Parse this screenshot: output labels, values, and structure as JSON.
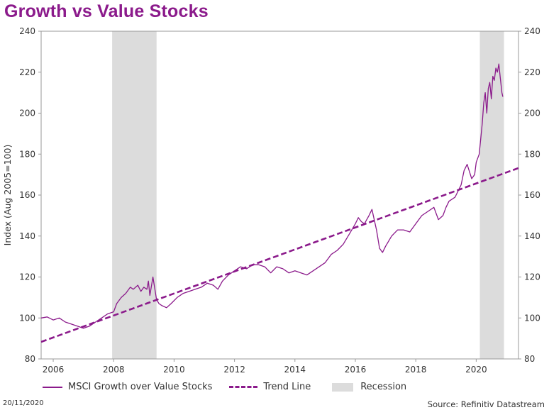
{
  "chart_data": {
    "type": "line",
    "title": "Growth vs Value Stocks",
    "ylabel": "Index (Aug 2005=100)",
    "xlim": [
      2005.6,
      2021.4
    ],
    "ylim": [
      80,
      240
    ],
    "x_ticks": [
      "2006",
      "2008",
      "2010",
      "2012",
      "2014",
      "2016",
      "2018",
      "2020"
    ],
    "y_ticks": [
      "80",
      "100",
      "120",
      "140",
      "160",
      "180",
      "200",
      "220",
      "240"
    ],
    "grid": false,
    "legend_position": "bottom",
    "colors": {
      "series": "#8B1A8B",
      "recession": "#dcdcdc"
    },
    "recessions": [
      {
        "start": 2007.95,
        "end": 2009.42
      },
      {
        "start": 2020.12,
        "end": 2020.92
      }
    ],
    "series": [
      {
        "name": "MSCI Growth over Value Stocks",
        "style": "solid",
        "x": [
          2005.6,
          2005.8,
          2006.0,
          2006.2,
          2006.4,
          2006.6,
          2006.8,
          2007.0,
          2007.2,
          2007.4,
          2007.6,
          2007.8,
          2008.0,
          2008.1,
          2008.25,
          2008.4,
          2008.55,
          2008.65,
          2008.8,
          2008.9,
          2009.0,
          2009.1,
          2009.15,
          2009.2,
          2009.3,
          2009.42,
          2009.5,
          2009.6,
          2009.75,
          2009.9,
          2010.1,
          2010.3,
          2010.5,
          2010.7,
          2010.9,
          2011.1,
          2011.3,
          2011.45,
          2011.6,
          2011.8,
          2012.0,
          2012.2,
          2012.4,
          2012.6,
          2012.8,
          2013.0,
          2013.2,
          2013.4,
          2013.6,
          2013.8,
          2014.0,
          2014.2,
          2014.4,
          2014.6,
          2014.8,
          2015.0,
          2015.2,
          2015.4,
          2015.6,
          2015.8,
          2016.0,
          2016.1,
          2016.2,
          2016.3,
          2016.45,
          2016.55,
          2016.7,
          2016.8,
          2016.9,
          2017.0,
          2017.2,
          2017.4,
          2017.6,
          2017.8,
          2018.0,
          2018.2,
          2018.4,
          2018.6,
          2018.75,
          2018.9,
          2019.0,
          2019.1,
          2019.3,
          2019.5,
          2019.6,
          2019.7,
          2019.85,
          2019.95,
          2020.0,
          2020.1,
          2020.2,
          2020.25,
          2020.3,
          2020.35,
          2020.4,
          2020.45,
          2020.5,
          2020.55,
          2020.6,
          2020.65,
          2020.7,
          2020.75,
          2020.8,
          2020.85,
          2020.88
        ],
        "values": [
          100,
          100.5,
          99,
          100,
          98,
          97,
          96,
          95,
          96,
          98,
          100,
          102,
          103,
          107,
          110,
          112,
          115,
          114,
          116,
          113,
          115,
          114,
          118,
          111,
          120,
          109,
          107,
          106,
          105,
          107,
          110,
          112,
          113,
          114,
          115,
          117,
          116,
          114,
          118,
          121,
          123,
          125,
          124,
          126,
          126,
          125,
          122,
          125,
          124,
          122,
          123,
          122,
          121,
          123,
          125,
          127,
          131,
          133,
          136,
          141,
          146,
          149,
          147,
          146,
          150,
          153,
          143,
          134,
          132,
          135,
          140,
          143,
          143,
          142,
          146,
          150,
          152,
          154,
          148,
          150,
          154,
          157,
          159,
          165,
          172,
          175,
          168,
          170,
          176,
          180,
          195,
          205,
          210,
          200,
          212,
          215,
          207,
          218,
          216,
          222,
          220,
          224,
          217,
          210,
          208
        ]
      },
      {
        "name": "Trend Line",
        "style": "dashed",
        "x": [
          2005.6,
          2021.4
        ],
        "values": [
          88.3,
          173.2
        ]
      }
    ]
  },
  "legend": {
    "series_label": "MSCI Growth over Value Stocks",
    "trend_label": "Trend Line",
    "recession_label": "Recession"
  },
  "footer": {
    "date": "20/11/2020",
    "source": "Source: Refinitiv Datastream"
  }
}
